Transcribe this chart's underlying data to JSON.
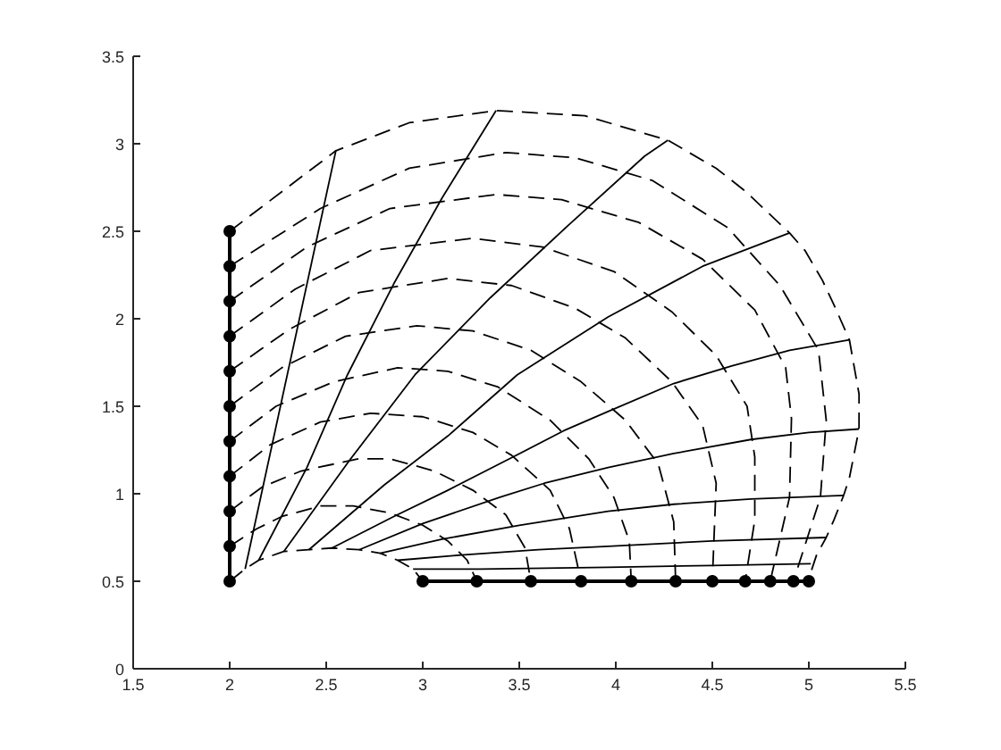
{
  "chart_data": {
    "type": "line",
    "xlim": [
      1.5,
      5.5
    ],
    "ylim": [
      0,
      3.5
    ],
    "xticks": [
      1.5,
      2,
      2.5,
      3,
      3.5,
      4,
      4.5,
      5,
      5.5
    ],
    "yticks": [
      0,
      0.5,
      1,
      1.5,
      2,
      2.5,
      3,
      3.5
    ],
    "grid": false,
    "series": [
      {
        "color": "#000000",
        "line_style": "solid",
        "marker": "circle",
        "x": [
          2,
          2,
          2,
          2,
          2,
          2,
          2,
          2,
          2,
          2,
          2
        ],
        "values": [
          0.5,
          0.7,
          0.9,
          1.1,
          1.3,
          1.5,
          1.7,
          1.9,
          2.1,
          2.3,
          2.5
        ]
      },
      {
        "color": "#000000",
        "line_style": "solid",
        "marker": "circle",
        "x": [
          3,
          3.28,
          3.56,
          3.82,
          4.08,
          4.31,
          4.5,
          4.67,
          4.8,
          4.92,
          5
        ],
        "values": [
          0.5,
          0.5,
          0.5,
          0.5,
          0.5,
          0.5,
          0.5,
          0.5,
          0.5,
          0.5,
          0.5
        ]
      },
      {
        "color": "#000000",
        "line_style": "dashed",
        "marker": "none",
        "x": [
          2,
          2.08,
          2.15,
          2.28,
          2.41,
          2.53,
          2.67,
          2.78,
          2.87,
          2.95,
          3
        ],
        "values": [
          0.5,
          0.57,
          0.62,
          0.67,
          0.68,
          0.69,
          0.68,
          0.66,
          0.62,
          0.57,
          0.5
        ]
      },
      {
        "color": "#000000",
        "line_style": "dashed",
        "marker": "none",
        "x": [
          2,
          2.14,
          2.27,
          2.47,
          2.64,
          2.83,
          3.0,
          3.13,
          3.23,
          3.28
        ],
        "values": [
          0.7,
          0.8,
          0.87,
          0.93,
          0.93,
          0.89,
          0.82,
          0.73,
          0.62,
          0.5
        ]
      },
      {
        "color": "#000000",
        "line_style": "dashed",
        "marker": "none",
        "x": [
          2,
          2.17,
          2.37,
          2.67,
          2.83,
          3.06,
          3.26,
          3.43,
          3.53,
          3.56
        ],
        "values": [
          0.9,
          1.04,
          1.13,
          1.2,
          1.2,
          1.13,
          1.02,
          0.88,
          0.69,
          0.5
        ]
      },
      {
        "color": "#000000",
        "line_style": "dashed",
        "marker": "none",
        "x": [
          2,
          2.21,
          2.47,
          2.73,
          3.0,
          3.26,
          3.46,
          3.66,
          3.76,
          3.82
        ],
        "values": [
          1.1,
          1.28,
          1.41,
          1.46,
          1.44,
          1.35,
          1.22,
          1.02,
          0.8,
          0.5
        ]
      },
      {
        "color": "#000000",
        "line_style": "dashed",
        "marker": "none",
        "x": [
          2,
          2.24,
          2.54,
          2.87,
          3.13,
          3.39,
          3.66,
          3.86,
          3.99,
          4.07,
          4.08
        ],
        "values": [
          1.3,
          1.5,
          1.64,
          1.72,
          1.7,
          1.61,
          1.42,
          1.2,
          0.98,
          0.73,
          0.5
        ]
      },
      {
        "color": "#000000",
        "line_style": "dashed",
        "marker": "none",
        "x": [
          2,
          2.27,
          2.6,
          2.97,
          3.26,
          3.56,
          3.82,
          4.05,
          4.22,
          4.3,
          4.31
        ],
        "values": [
          1.5,
          1.72,
          1.9,
          1.96,
          1.93,
          1.82,
          1.64,
          1.42,
          1.17,
          0.84,
          0.5
        ]
      },
      {
        "color": "#000000",
        "line_style": "dashed",
        "marker": "none",
        "x": [
          2,
          2.31,
          2.67,
          3.13,
          3.46,
          3.79,
          4.05,
          4.29,
          4.45,
          4.52,
          4.5
        ],
        "values": [
          1.7,
          1.94,
          2.15,
          2.23,
          2.19,
          2.06,
          1.89,
          1.64,
          1.39,
          1.06,
          0.5
        ]
      },
      {
        "color": "#000000",
        "line_style": "dashed",
        "marker": "none",
        "x": [
          2,
          2.34,
          2.73,
          3.26,
          3.62,
          3.99,
          4.29,
          4.52,
          4.68,
          4.72,
          4.72,
          4.67
        ],
        "values": [
          1.9,
          2.17,
          2.39,
          2.46,
          2.41,
          2.27,
          2.04,
          1.79,
          1.5,
          1.21,
          0.85,
          0.5
        ]
      },
      {
        "color": "#000000",
        "line_style": "dashed",
        "marker": "none",
        "x": [
          2,
          2.4,
          2.83,
          3.38,
          3.72,
          4.12,
          4.45,
          4.72,
          4.88,
          4.91,
          4.9,
          4.8
        ],
        "values": [
          2.1,
          2.41,
          2.63,
          2.71,
          2.68,
          2.55,
          2.34,
          2.05,
          1.72,
          1.43,
          0.98,
          0.5
        ]
      },
      {
        "color": "#000000",
        "line_style": "dashed",
        "marker": "none",
        "x": [
          2,
          2.47,
          2.93,
          3.43,
          3.79,
          4.19,
          4.58,
          4.85,
          5.05,
          5.09,
          5.06,
          4.92
        ],
        "values": [
          2.3,
          2.63,
          2.86,
          2.95,
          2.92,
          2.79,
          2.52,
          2.19,
          1.82,
          1.42,
          0.98,
          0.5
        ]
      },
      {
        "color": "#000000",
        "line_style": "dashed",
        "marker": "none",
        "x": [
          2,
          2.55,
          2.93,
          3.38,
          3.84,
          4.27,
          4.52,
          4.67,
          4.9,
          4.98,
          5.07,
          5.13,
          5.21,
          5.26,
          5.26,
          5.21,
          5.18,
          5.13,
          5.09,
          5.04,
          5.01,
          5
        ],
        "values": [
          2.5,
          2.96,
          3.12,
          3.19,
          3.16,
          3.02,
          2.86,
          2.73,
          2.49,
          2.39,
          2.22,
          2.08,
          1.88,
          1.57,
          1.37,
          1.09,
          0.99,
          0.85,
          0.75,
          0.65,
          0.55,
          0.5
        ]
      },
      {
        "color": "#000000",
        "line_style": "solid",
        "marker": "none",
        "x": [
          2.08,
          2.55
        ],
        "values": [
          0.57,
          2.96
        ]
      },
      {
        "color": "#000000",
        "line_style": "solid",
        "marker": "none",
        "x": [
          2.15,
          2.4,
          2.61,
          2.85,
          3.1,
          3.38
        ],
        "values": [
          0.62,
          1.15,
          1.68,
          2.2,
          2.69,
          3.19
        ]
      },
      {
        "color": "#000000",
        "line_style": "solid",
        "marker": "none",
        "x": [
          2.28,
          2.62,
          2.96,
          3.35,
          3.75,
          4.15,
          4.27
        ],
        "values": [
          0.67,
          1.19,
          1.68,
          2.12,
          2.53,
          2.93,
          3.02
        ]
      },
      {
        "color": "#000000",
        "line_style": "solid",
        "marker": "none",
        "x": [
          2.41,
          2.8,
          3.13,
          3.49,
          3.96,
          4.45,
          4.9
        ],
        "values": [
          0.68,
          1.05,
          1.33,
          1.68,
          2.01,
          2.3,
          2.49
        ]
      },
      {
        "color": "#000000",
        "line_style": "solid",
        "marker": "none",
        "x": [
          2.53,
          2.85,
          3.13,
          3.45,
          3.73,
          3.96,
          4.3,
          4.6,
          4.9,
          5.21
        ],
        "values": [
          0.69,
          0.87,
          1.02,
          1.2,
          1.36,
          1.47,
          1.63,
          1.73,
          1.82,
          1.88
        ]
      },
      {
        "color": "#000000",
        "line_style": "solid",
        "marker": "none",
        "x": [
          2.67,
          3.0,
          3.4,
          3.63,
          3.96,
          4.3,
          4.7,
          5.0,
          5.26
        ],
        "values": [
          0.68,
          0.83,
          0.98,
          1.06,
          1.15,
          1.23,
          1.31,
          1.35,
          1.37
        ]
      },
      {
        "color": "#000000",
        "line_style": "solid",
        "marker": "none",
        "x": [
          2.78,
          3.1,
          3.5,
          3.96,
          4.3,
          4.7,
          5.18
        ],
        "values": [
          0.66,
          0.74,
          0.82,
          0.9,
          0.94,
          0.97,
          0.99
        ]
      },
      {
        "color": "#000000",
        "line_style": "solid",
        "marker": "none",
        "x": [
          2.87,
          3.2,
          3.6,
          3.96,
          4.5,
          5.09
        ],
        "values": [
          0.62,
          0.65,
          0.68,
          0.7,
          0.73,
          0.75
        ]
      },
      {
        "color": "#000000",
        "line_style": "solid",
        "marker": "none",
        "x": [
          2.95,
          3.3,
          3.96,
          4.5,
          5.01
        ],
        "values": [
          0.57,
          0.57,
          0.58,
          0.59,
          0.6
        ]
      }
    ]
  }
}
